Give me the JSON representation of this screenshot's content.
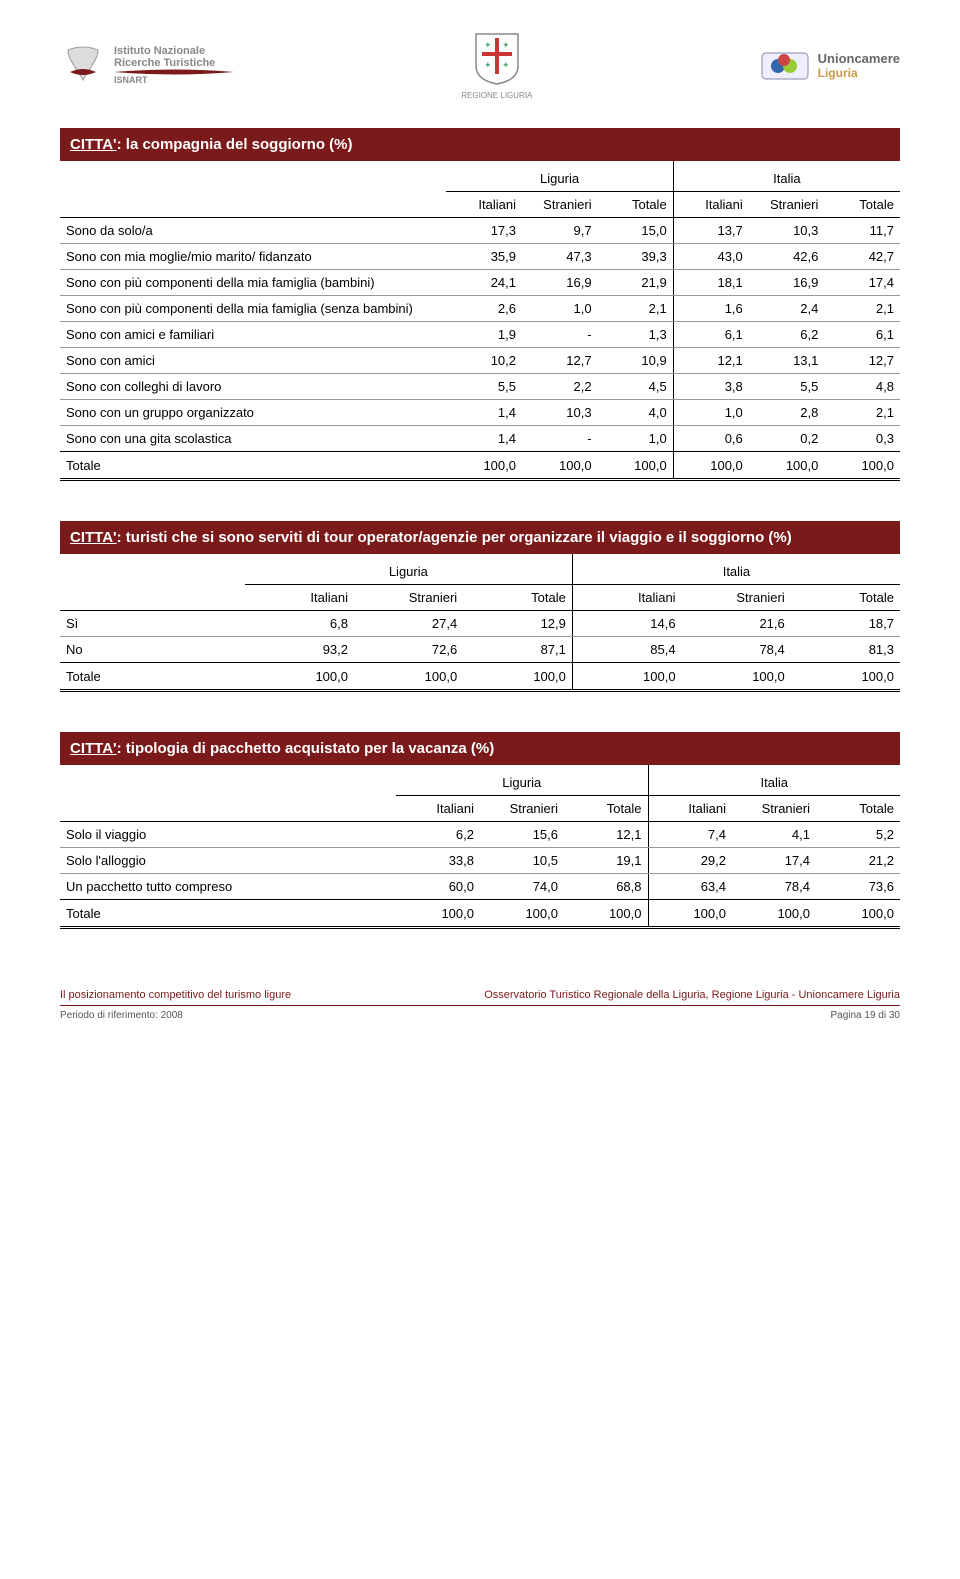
{
  "header": {
    "logo_left_line1": "Istituto Nazionale",
    "logo_left_line2": "Ricerche Turistiche",
    "logo_left_sub": "ISNART",
    "logo_center_sub": "REGIONE LIGURIA",
    "logo_right_line1": "Unioncamere",
    "logo_right_line2": "Liguria"
  },
  "table1": {
    "title_underline": "CITTA'",
    "title_rest": ": la compagnia del soggiorno (%)",
    "super_headers": [
      "Liguria",
      "Italia"
    ],
    "col_headers": [
      "Italiani",
      "Stranieri",
      "Totale",
      "Italiani",
      "Stranieri",
      "Totale"
    ],
    "rows": [
      {
        "label": "Sono da solo/a",
        "vals": [
          "17,3",
          "9,7",
          "15,0",
          "13,7",
          "10,3",
          "11,7"
        ]
      },
      {
        "label": "Sono con mia moglie/mio marito/ fidanzato",
        "vals": [
          "35,9",
          "47,3",
          "39,3",
          "43,0",
          "42,6",
          "42,7"
        ]
      },
      {
        "label": "Sono con più componenti della mia famiglia (bambini)",
        "vals": [
          "24,1",
          "16,9",
          "21,9",
          "18,1",
          "16,9",
          "17,4"
        ]
      },
      {
        "label": "Sono con più componenti della mia famiglia (senza bambini)",
        "vals": [
          "2,6",
          "1,0",
          "2,1",
          "1,6",
          "2,4",
          "2,1"
        ]
      },
      {
        "label": "Sono con amici e familiari",
        "vals": [
          "1,9",
          "-",
          "1,3",
          "6,1",
          "6,2",
          "6,1"
        ]
      },
      {
        "label": "Sono con amici",
        "vals": [
          "10,2",
          "12,7",
          "10,9",
          "12,1",
          "13,1",
          "12,7"
        ]
      },
      {
        "label": "Sono con colleghi di lavoro",
        "vals": [
          "5,5",
          "2,2",
          "4,5",
          "3,8",
          "5,5",
          "4,8"
        ]
      },
      {
        "label": "Sono con un gruppo organizzato",
        "vals": [
          "1,4",
          "10,3",
          "4,0",
          "1,0",
          "2,8",
          "2,1"
        ]
      },
      {
        "label": "Sono con una gita scolastica",
        "vals": [
          "1,4",
          "-",
          "1,0",
          "0,6",
          "0,2",
          "0,3"
        ]
      }
    ],
    "total": {
      "label": "Totale",
      "vals": [
        "100,0",
        "100,0",
        "100,0",
        "100,0",
        "100,0",
        "100,0"
      ]
    }
  },
  "table2": {
    "title_underline": "CITTA'",
    "title_rest": ": turisti che si sono serviti di tour operator/agenzie per organizzare il viaggio e il soggiorno (%)",
    "super_headers": [
      "Liguria",
      "Italia"
    ],
    "col_headers": [
      "Italiani",
      "Stranieri",
      "Totale",
      "Italiani",
      "Stranieri",
      "Totale"
    ],
    "rows": [
      {
        "label": "Sì",
        "vals": [
          "6,8",
          "27,4",
          "12,9",
          "14,6",
          "21,6",
          "18,7"
        ]
      },
      {
        "label": "No",
        "vals": [
          "93,2",
          "72,6",
          "87,1",
          "85,4",
          "78,4",
          "81,3"
        ]
      }
    ],
    "total": {
      "label": "Totale",
      "vals": [
        "100,0",
        "100,0",
        "100,0",
        "100,0",
        "100,0",
        "100,0"
      ]
    }
  },
  "table3": {
    "title_underline": "CITTA'",
    "title_rest": ": tipologia di pacchetto acquistato per la vacanza (%)",
    "super_headers": [
      "Liguria",
      "Italia"
    ],
    "col_headers": [
      "Italiani",
      "Stranieri",
      "Totale",
      "Italiani",
      "Stranieri",
      "Totale"
    ],
    "rows": [
      {
        "label": "Solo il viaggio",
        "vals": [
          "6,2",
          "15,6",
          "12,1",
          "7,4",
          "4,1",
          "5,2"
        ]
      },
      {
        "label": "Solo l'alloggio",
        "vals": [
          "33,8",
          "10,5",
          "19,1",
          "29,2",
          "17,4",
          "21,2"
        ]
      },
      {
        "label": "Un pacchetto tutto compreso",
        "vals": [
          "60,0",
          "74,0",
          "68,8",
          "63,4",
          "78,4",
          "73,6"
        ]
      }
    ],
    "total": {
      "label": "Totale",
      "vals": [
        "100,0",
        "100,0",
        "100,0",
        "100,0",
        "100,0",
        "100,0"
      ]
    }
  },
  "footer": {
    "left": "Il posizionamento competitivo del turismo ligure",
    "right": "Osservatorio Turistico Regionale della Liguria, Regione Liguria - Unioncamere Liguria",
    "bottom_left": "Periodo di riferimento: 2008",
    "bottom_right": "Pagina 19 di 30"
  }
}
